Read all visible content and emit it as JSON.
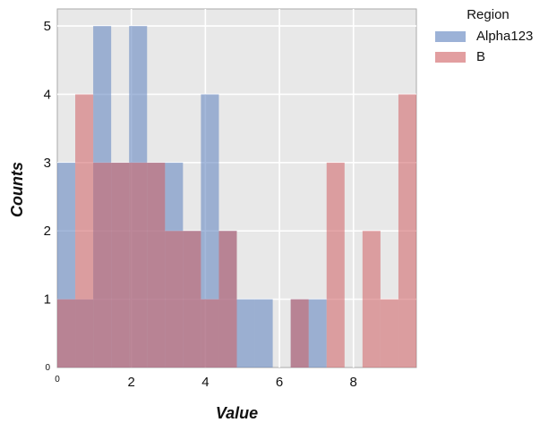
{
  "chart_data": {
    "type": "histogram",
    "title": "",
    "xlabel": "Value",
    "ylabel": "Counts",
    "xlim": [
      0,
      9.7
    ],
    "ylim": [
      0,
      5.25
    ],
    "x_ticks": [
      0,
      2,
      4,
      6,
      8
    ],
    "y_ticks": [
      0,
      1,
      2,
      3,
      4,
      5
    ],
    "grid": true,
    "legend_title": "Region",
    "legend_position": "outside-top-right",
    "bin_edges": [
      0,
      0.485,
      0.97,
      1.455,
      1.94,
      2.425,
      2.91,
      3.395,
      3.88,
      4.365,
      4.85,
      5.335,
      5.82,
      6.305,
      6.79,
      7.275,
      7.76,
      8.245,
      8.73,
      9.215,
      9.7
    ],
    "series": [
      {
        "name": "Alpha123",
        "color": "#5b7fbe",
        "counts": [
          3,
          1,
          5,
          3,
          5,
          3,
          3,
          2,
          4,
          2,
          1,
          1,
          0,
          1,
          1,
          0,
          0,
          0,
          0,
          0
        ]
      },
      {
        "name": "B",
        "color": "#cf5f62",
        "counts": [
          1,
          4,
          3,
          3,
          3,
          3,
          2,
          2,
          1,
          2,
          0,
          0,
          0,
          1,
          0,
          3,
          0,
          2,
          1,
          4
        ]
      }
    ]
  }
}
